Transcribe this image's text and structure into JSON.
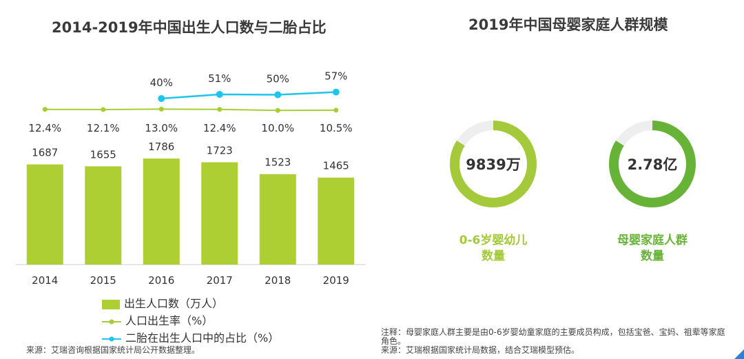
{
  "left_title": "2014-2019年中国出生人口数与二胎占比",
  "right_title": "2019年中国母婴家庭人群规模",
  "colors": {
    "bar": "#aecf34",
    "birth_rate_line": "#a8cc32",
    "second_child_line": "#1fc4ea",
    "donut_track": "#eeeeee",
    "donut1": "#a4c93a",
    "donut2": "#67b338"
  },
  "chart_data": {
    "type": "bar",
    "categories": [
      "2014",
      "2015",
      "2016",
      "2017",
      "2018",
      "2019"
    ],
    "series": [
      {
        "name": "出生人口数（万人）",
        "type": "bar",
        "values": [
          1687,
          1655,
          1786,
          1723,
          1523,
          1465
        ],
        "labels": [
          "1687",
          "1655",
          "1786",
          "1723",
          "1523",
          "1465"
        ]
      },
      {
        "name": "人口出生率（%）",
        "type": "line",
        "values": [
          12.4,
          12.1,
          13.0,
          12.4,
          10.0,
          10.5
        ],
        "labels": [
          "12.4%",
          "12.1%",
          "13.0%",
          "12.4%",
          "10.0%",
          "10.5%"
        ]
      },
      {
        "name": "二胎在出生人口中的占比（%）",
        "type": "line",
        "values": [
          null,
          null,
          40,
          51,
          50,
          57
        ],
        "labels": [
          "",
          "",
          "40%",
          "51%",
          "50%",
          "57%"
        ]
      }
    ],
    "legend": [
      "出生人口数（万人）",
      "人口出生率（%）",
      "二胎在出生人口中的占比（%）"
    ]
  },
  "donuts": [
    {
      "value_text": "9839万",
      "label_line1": "0-6岁婴幼儿",
      "label_line2": "数量",
      "fraction": 0.84
    },
    {
      "value_text": "2.78亿",
      "label_line1": "母婴家庭人群",
      "label_line2": "数量",
      "fraction": 0.84
    }
  ],
  "left_source": "来源：艾瑞咨询根据国家统计局公开数据整理。",
  "right_note": "注释：母婴家庭人群主要是由0-6岁婴幼童家庭的主要成员构成，包括宝爸、宝妈、祖辈等家庭角色。",
  "right_source": "来源：艾瑞根据国家统计局数据，结合艾瑞模型预估。"
}
